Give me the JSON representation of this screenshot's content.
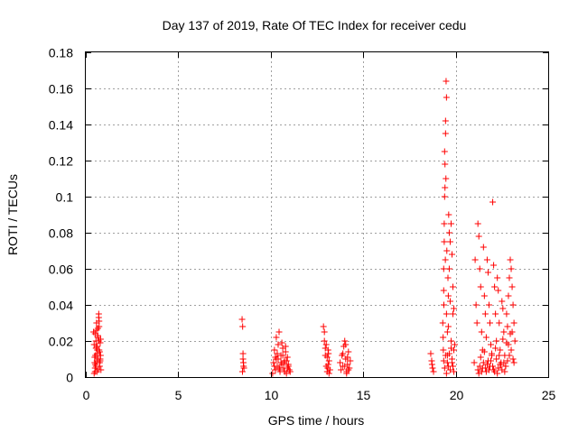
{
  "chart_data": {
    "type": "scatter",
    "title": "Day 137 of 2019, Rate Of TEC Index for receiver cedu",
    "xlabel": "GPS time / hours",
    "ylabel": "ROTI / TECUs",
    "xlim": [
      0,
      25
    ],
    "ylim": [
      0,
      0.18
    ],
    "x_ticks": [
      "0",
      "5",
      "10",
      "15",
      "20",
      "25"
    ],
    "y_ticks": [
      "0",
      "0.02",
      "0.04",
      "0.06",
      "0.08",
      "0.1",
      "0.12",
      "0.14",
      "0.16",
      "0.18"
    ],
    "grid": true,
    "marker": "+",
    "series_color": "#ff0000",
    "series": [
      {
        "name": "ROTI",
        "x": [
          0.42,
          0.45,
          0.48,
          0.5,
          0.52,
          0.55,
          0.58,
          0.6,
          0.62,
          0.65,
          0.68,
          0.7,
          0.72,
          0.75,
          0.78,
          0.8,
          0.82,
          0.45,
          0.5,
          0.55,
          0.6,
          0.65,
          0.7,
          0.75,
          0.8,
          0.48,
          0.52,
          0.58,
          0.62,
          0.68,
          0.72,
          0.78,
          0.5,
          0.6,
          0.7,
          0.75,
          0.55,
          0.65,
          0.72,
          0.78,
          8.45,
          8.48,
          8.5,
          8.52,
          8.55,
          8.5,
          8.47,
          8.53,
          10.1,
          10.15,
          10.2,
          10.25,
          10.3,
          10.35,
          10.4,
          10.45,
          10.5,
          10.55,
          10.6,
          10.65,
          10.7,
          10.75,
          10.8,
          10.85,
          10.9,
          10.95,
          11.0,
          11.05,
          10.3,
          10.35,
          10.6,
          10.7,
          10.8,
          10.9,
          10.2,
          10.4,
          10.5,
          10.65,
          10.75,
          10.85,
          10.95,
          10.25,
          10.45,
          10.55,
          12.85,
          12.9,
          12.95,
          13.0,
          13.05,
          13.1,
          13.15,
          13.2,
          12.9,
          13.0,
          13.1,
          13.05,
          13.15,
          12.95,
          13.08,
          13.12,
          13.75,
          13.8,
          13.85,
          13.9,
          13.95,
          14.0,
          14.05,
          14.1,
          14.15,
          14.2,
          14.25,
          14.3,
          14.05,
          14.1,
          14.15,
          13.9,
          14.0,
          14.2,
          18.65,
          18.7,
          18.75,
          18.8,
          18.72,
          19.3,
          19.32,
          19.35,
          19.38,
          19.4,
          19.42,
          19.45,
          19.48,
          19.5,
          19.35,
          19.4,
          19.45,
          19.38,
          19.42,
          19.33,
          19.36,
          19.44,
          19.47,
          19.5,
          19.52,
          19.55,
          19.58,
          19.6,
          19.62,
          19.65,
          19.7,
          19.75,
          19.8,
          19.85,
          19.9,
          19.95,
          19.55,
          19.6,
          19.65,
          19.7,
          19.75,
          19.8,
          19.85,
          19.9,
          19.6,
          19.7,
          19.8,
          19.9,
          19.4,
          19.5,
          19.45,
          19.35,
          19.55,
          19.65,
          19.75,
          19.85,
          21.0,
          21.05,
          21.1,
          21.15,
          21.2,
          21.25,
          21.3,
          21.35,
          21.4,
          21.45,
          21.5,
          21.55,
          21.6,
          21.65,
          21.7,
          21.75,
          21.8,
          21.85,
          21.9,
          21.95,
          22.0,
          22.05,
          22.1,
          22.15,
          22.2,
          22.25,
          22.3,
          22.35,
          22.4,
          22.45,
          22.5,
          22.55,
          22.6,
          22.65,
          22.7,
          22.75,
          22.8,
          22.85,
          22.9,
          22.95,
          23.0,
          23.05,
          23.1,
          23.15,
          23.2,
          21.2,
          21.3,
          21.4,
          21.5,
          21.6,
          21.7,
          21.8,
          21.9,
          22.0,
          22.1,
          22.2,
          22.3,
          22.4,
          22.5,
          22.6,
          22.7,
          22.8,
          22.9,
          23.0,
          23.1,
          21.25,
          21.45,
          21.65,
          21.85,
          22.05,
          22.25,
          22.45,
          22.65,
          22.85,
          23.05,
          21.35,
          21.55,
          21.75,
          21.95,
          22.15,
          22.35,
          22.55,
          22.75,
          22.95,
          23.15
        ],
        "y": [
          0.025,
          0.018,
          0.008,
          0.005,
          0.012,
          0.02,
          0.03,
          0.003,
          0.015,
          0.022,
          0.01,
          0.035,
          0.028,
          0.006,
          0.019,
          0.012,
          0.004,
          0.002,
          0.024,
          0.016,
          0.009,
          0.027,
          0.033,
          0.014,
          0.021,
          0.011,
          0.007,
          0.026,
          0.017,
          0.004,
          0.031,
          0.009,
          0.003,
          0.013,
          0.02,
          0.008,
          0.006,
          0.023,
          0.015,
          0.01,
          0.032,
          0.028,
          0.013,
          0.008,
          0.005,
          0.01,
          0.003,
          0.006,
          0.002,
          0.008,
          0.015,
          0.004,
          0.01,
          0.006,
          0.018,
          0.025,
          0.003,
          0.012,
          0.007,
          0.016,
          0.005,
          0.009,
          0.014,
          0.002,
          0.011,
          0.006,
          0.004,
          0.003,
          0.022,
          0.013,
          0.019,
          0.008,
          0.017,
          0.005,
          0.006,
          0.01,
          0.004,
          0.012,
          0.003,
          0.009,
          0.007,
          0.011,
          0.005,
          0.008,
          0.028,
          0.02,
          0.012,
          0.006,
          0.003,
          0.015,
          0.009,
          0.004,
          0.025,
          0.018,
          0.007,
          0.011,
          0.002,
          0.016,
          0.005,
          0.013,
          0.008,
          0.004,
          0.012,
          0.006,
          0.017,
          0.02,
          0.01,
          0.003,
          0.007,
          0.014,
          0.005,
          0.009,
          0.018,
          0.002,
          0.011,
          0.013,
          0.006,
          0.004,
          0.013,
          0.009,
          0.005,
          0.003,
          0.007,
          0.03,
          0.022,
          0.048,
          0.075,
          0.1,
          0.118,
          0.142,
          0.164,
          0.155,
          0.06,
          0.125,
          0.135,
          0.085,
          0.105,
          0.015,
          0.04,
          0.065,
          0.11,
          0.035,
          0.07,
          0.025,
          0.055,
          0.045,
          0.09,
          0.08,
          0.075,
          0.085,
          0.068,
          0.05,
          0.038,
          0.018,
          0.012,
          0.028,
          0.06,
          0.042,
          0.02,
          0.008,
          0.035,
          0.015,
          0.006,
          0.004,
          0.01,
          0.003,
          0.005,
          0.002,
          0.012,
          0.009,
          0.008,
          0.013,
          0.016,
          0.006,
          0.008,
          0.065,
          0.04,
          0.03,
          0.085,
          0.078,
          0.06,
          0.05,
          0.025,
          0.015,
          0.072,
          0.045,
          0.035,
          0.022,
          0.065,
          0.058,
          0.04,
          0.03,
          0.018,
          0.012,
          0.097,
          0.062,
          0.05,
          0.035,
          0.02,
          0.055,
          0.048,
          0.03,
          0.015,
          0.008,
          0.042,
          0.038,
          0.025,
          0.012,
          0.006,
          0.035,
          0.028,
          0.045,
          0.055,
          0.065,
          0.06,
          0.05,
          0.04,
          0.03,
          0.02,
          0.004,
          0.006,
          0.003,
          0.008,
          0.005,
          0.007,
          0.004,
          0.009,
          0.006,
          0.003,
          0.01,
          0.005,
          0.007,
          0.004,
          0.008,
          0.006,
          0.009,
          0.012,
          0.015,
          0.01,
          0.002,
          0.005,
          0.003,
          0.006,
          0.004,
          0.002,
          0.007,
          0.003,
          0.018,
          0.025,
          0.011,
          0.014,
          0.009,
          0.013,
          0.016,
          0.012,
          0.021,
          0.019,
          0.024,
          0.008
        ]
      }
    ]
  }
}
